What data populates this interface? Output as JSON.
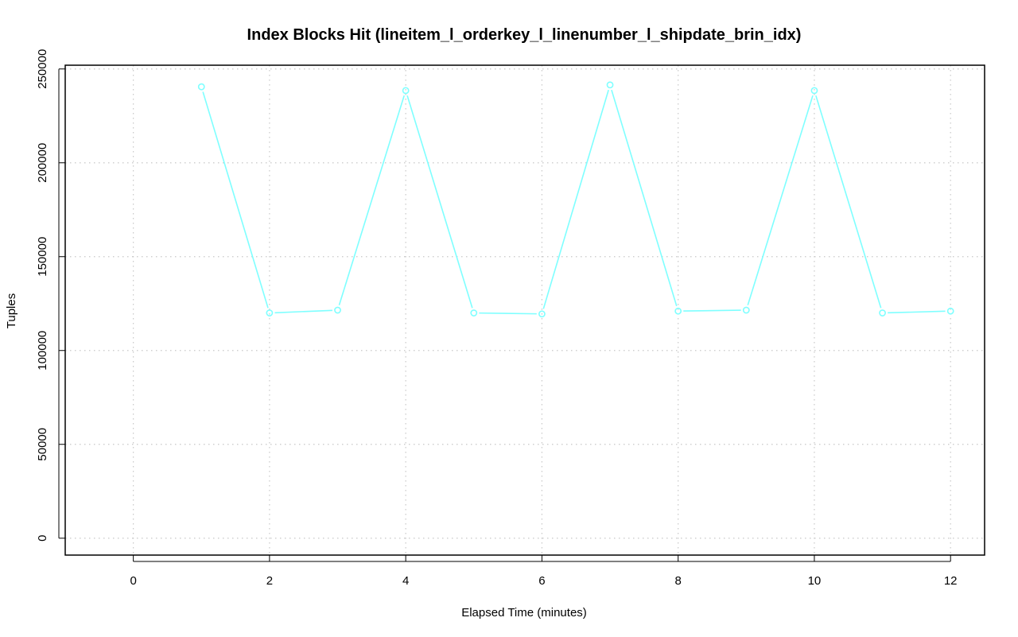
{
  "chart_data": {
    "type": "line",
    "title": "Index Blocks Hit (lineitem_l_orderkey_l_linenumber_l_shipdate_brin_idx)",
    "xlabel": "Elapsed Time (minutes)",
    "ylabel": "Tuples",
    "xlim": [
      -1,
      12.5
    ],
    "ylim": [
      -9000,
      252000
    ],
    "x_ticks": [
      0,
      2,
      4,
      6,
      8,
      10,
      12
    ],
    "y_ticks": [
      0,
      50000,
      100000,
      150000,
      200000,
      250000
    ],
    "grid": true,
    "series": [
      {
        "color": "#7fffff",
        "x": [
          1,
          2,
          3,
          4,
          5,
          6,
          7,
          8,
          9,
          10,
          11,
          12
        ],
        "y": [
          240500,
          120000,
          121500,
          238500,
          120000,
          119500,
          241500,
          121000,
          121500,
          238500,
          120000,
          121000
        ]
      }
    ]
  }
}
